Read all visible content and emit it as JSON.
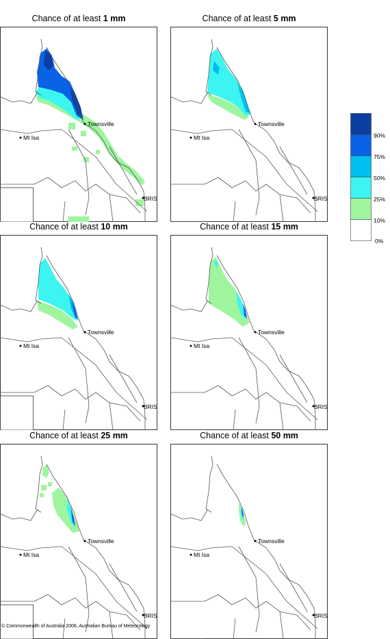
{
  "panels": [
    {
      "prefix": "Chance of at least ",
      "amount": "1 mm"
    },
    {
      "prefix": "Chance of at least ",
      "amount": "5 mm"
    },
    {
      "prefix": "Chance of at least ",
      "amount": "10 mm"
    },
    {
      "prefix": "Chance of at least ",
      "amount": "15 mm"
    },
    {
      "prefix": "Chance of at least ",
      "amount": "25 mm"
    },
    {
      "prefix": "Chance of at least ",
      "amount": "50 mm"
    }
  ],
  "places": {
    "townsville": "Townsville",
    "mt_isa": "Mt Isa",
    "bris": "BRIS"
  },
  "legend": {
    "labels": [
      "90%",
      "75%",
      "50%",
      "25%",
      "10%",
      "0%"
    ],
    "colors": [
      "#0b3e9e",
      "#0a63e6",
      "#00bff0",
      "#3cf5f0",
      "#9ef59e",
      "#ffffff"
    ]
  },
  "footer": {
    "copyright": "© Commonwealth of Australia 2006, Australian Bureau of Meteorology"
  }
}
